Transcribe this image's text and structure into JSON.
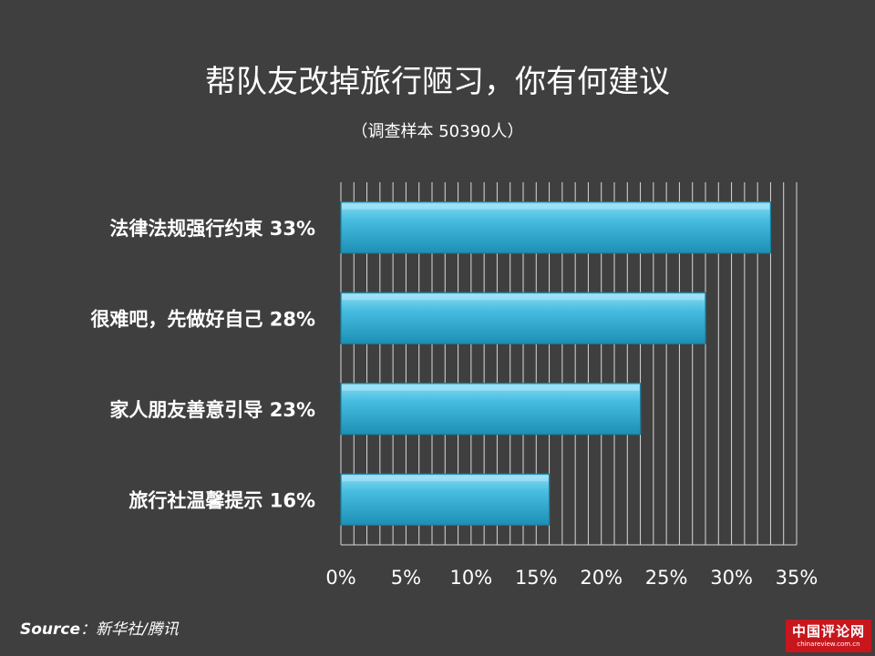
{
  "header": {
    "title": "帮队友改掉旅行陋习，你有何建议",
    "subtitle": "（调查样本 50390人）"
  },
  "chart_data": {
    "type": "bar",
    "orientation": "horizontal",
    "title": "帮队友改掉旅行陋习，你有何建议",
    "subtitle": "（调查样本 50390人）",
    "categories": [
      "法律法规强行约束 33%",
      "很难吧，先做好自己 28%",
      "家人朋友善意引导 23%",
      "旅行社温馨提示 16%"
    ],
    "values": [
      33,
      28,
      23,
      16
    ],
    "xlim": [
      0,
      35
    ],
    "x_ticks": [
      "0%",
      "5%",
      "10%",
      "15%",
      "20%",
      "25%",
      "30%",
      "35%"
    ],
    "grid": true,
    "bar_color": "#3bb3d6"
  },
  "footer": {
    "source_label": "Source",
    "source_text": "：新华社/腾讯",
    "logo_title": "中国评论网",
    "logo_url": "chinareview.com.cn"
  }
}
